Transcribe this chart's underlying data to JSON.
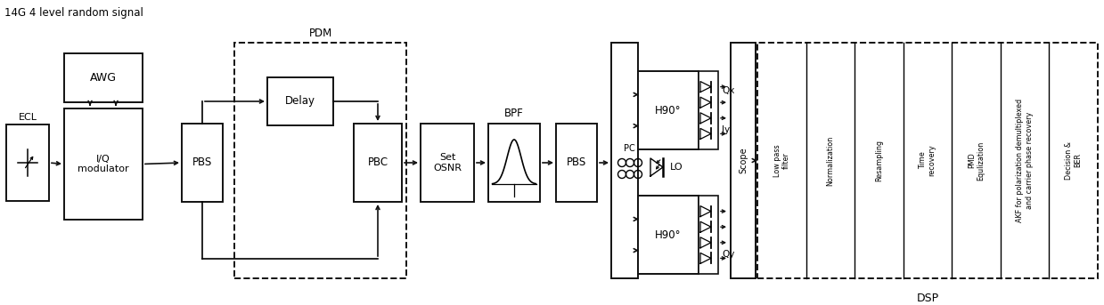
{
  "title": "14G 4 level random signal",
  "dsp_label": "DSP",
  "pdm_label": "PDM",
  "bpf_label": "BPF",
  "ecl_label": "ECL",
  "background": "#ffffff",
  "fig_width": 12.39,
  "fig_height": 3.43,
  "dpi": 100,
  "dsp_col_labels": [
    "Low pass\nfilter",
    "Normalization",
    "Resampling",
    "Time\nrecovery",
    "PMD\nEqulization",
    "AKF for polarization demultiplexed\nand carrier phase recovery",
    "Decision &\nBER"
  ]
}
